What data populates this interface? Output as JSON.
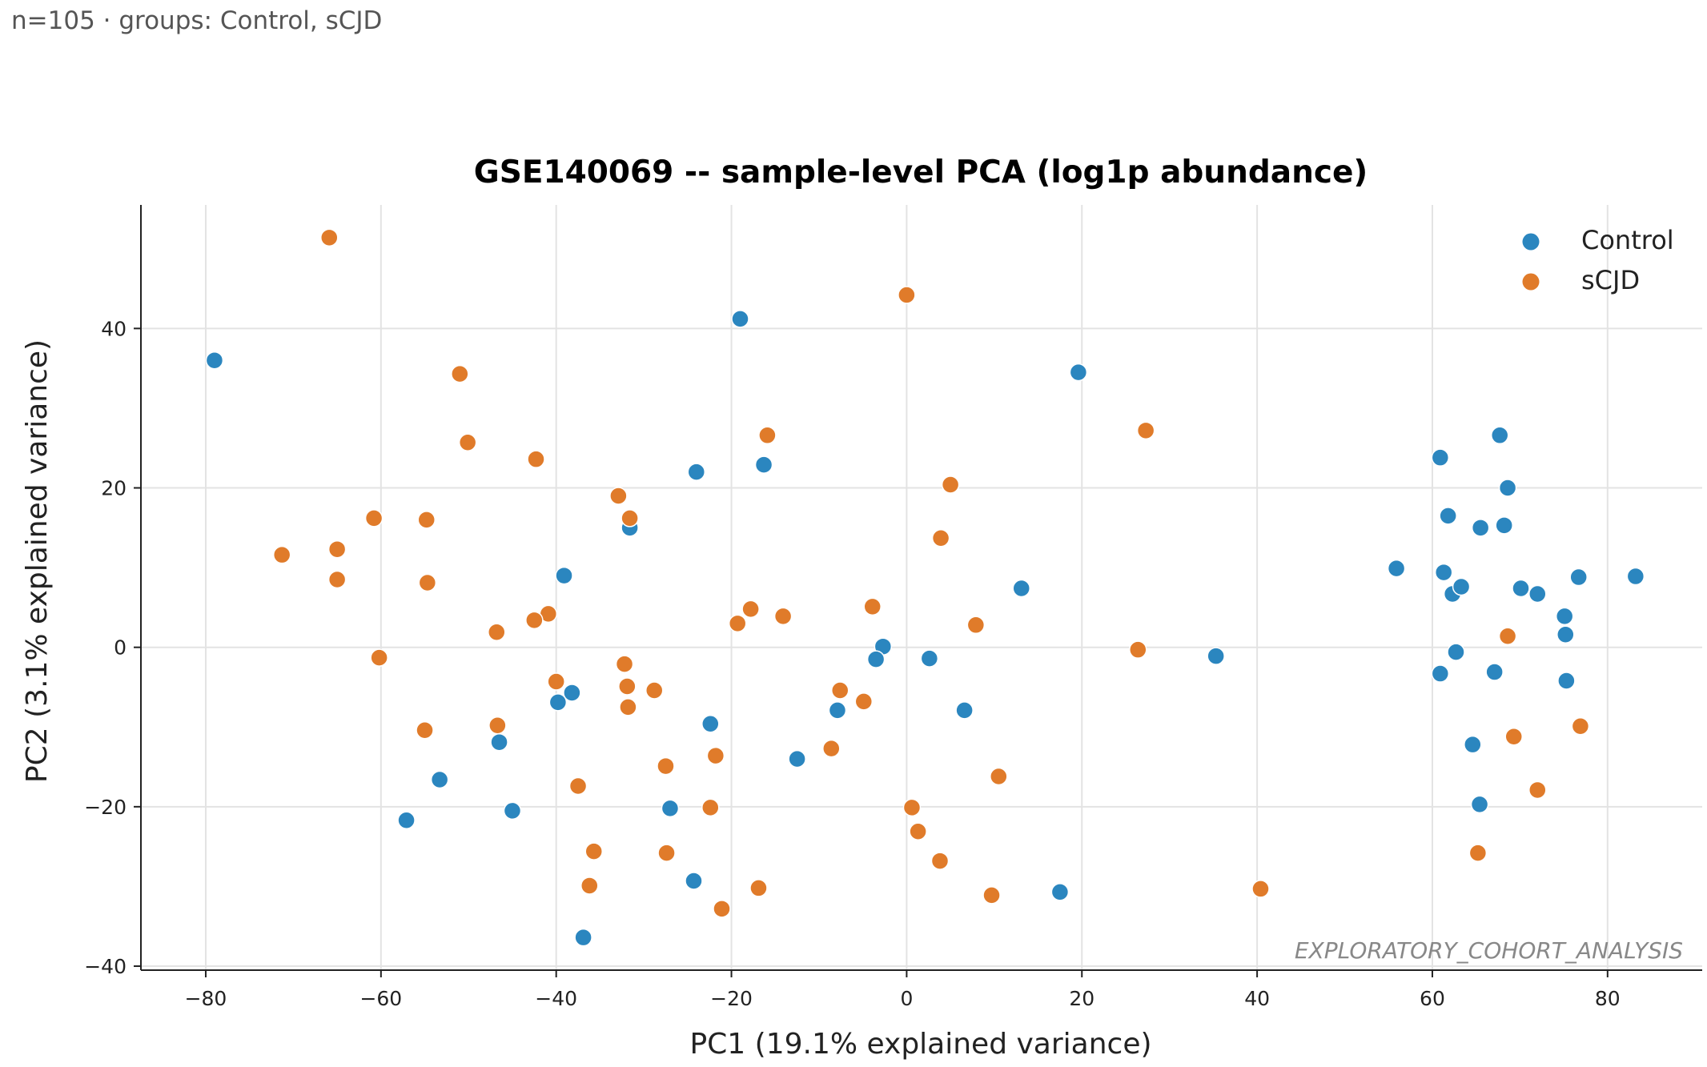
{
  "header": {
    "note": "n=105 · groups: Control, sCJD"
  },
  "watermark": "EXPLORATORY_COHORT_ANALYSIS",
  "chart_data": {
    "type": "scatter",
    "title": "GSE140069 -- sample-level PCA (log1p abundance)",
    "xlabel": "PC1 (19.1% explained variance)",
    "ylabel": "PC2 (3.1% explained variance)",
    "xlim": [
      -87.4,
      90.8
    ],
    "ylim": [
      -40.5,
      55.5
    ],
    "xticks": [
      -80,
      -60,
      -40,
      -20,
      0,
      20,
      40,
      60,
      80
    ],
    "yticks": [
      -40,
      -20,
      0,
      20,
      40
    ],
    "grid": true,
    "legend_position": "top-right",
    "series": [
      {
        "name": "Control",
        "color": "#2b86bf",
        "points": [
          [
            -79,
            36
          ],
          [
            -19,
            41.2
          ],
          [
            19.6,
            34.5
          ],
          [
            -24,
            22
          ],
          [
            -16.3,
            22.9
          ],
          [
            -31.6,
            15
          ],
          [
            -39.1,
            9
          ],
          [
            13.1,
            7.4
          ],
          [
            -2.7,
            0.1
          ],
          [
            -3.5,
            -1.5
          ],
          [
            2.6,
            -1.4
          ],
          [
            35.3,
            -1.1
          ],
          [
            -38.2,
            -5.7
          ],
          [
            -39.8,
            -6.9
          ],
          [
            -22.4,
            -9.6
          ],
          [
            -7.9,
            -7.9
          ],
          [
            6.6,
            -7.9
          ],
          [
            -46.5,
            -11.9
          ],
          [
            -12.5,
            -14
          ],
          [
            -53.3,
            -16.6
          ],
          [
            -57.1,
            -21.7
          ],
          [
            -45,
            -20.5
          ],
          [
            -27,
            -20.2
          ],
          [
            -24.3,
            -29.3
          ],
          [
            17.5,
            -30.7
          ],
          [
            -36.9,
            -36.4
          ],
          [
            67.7,
            26.6
          ],
          [
            60.9,
            23.8
          ],
          [
            68.6,
            20
          ],
          [
            61.8,
            16.5
          ],
          [
            65.5,
            15
          ],
          [
            68.2,
            15.3
          ],
          [
            55.9,
            9.9
          ],
          [
            61.3,
            9.4
          ],
          [
            62.3,
            6.7
          ],
          [
            63.3,
            7.6
          ],
          [
            70.1,
            7.4
          ],
          [
            72,
            6.7
          ],
          [
            76.7,
            8.8
          ],
          [
            83.2,
            8.9
          ],
          [
            75.1,
            3.9
          ],
          [
            75.2,
            1.6
          ],
          [
            62.7,
            -0.6
          ],
          [
            60.9,
            -3.3
          ],
          [
            67.1,
            -3.1
          ],
          [
            75.3,
            -4.2
          ],
          [
            64.6,
            -12.2
          ],
          [
            65.4,
            -19.7
          ]
        ]
      },
      {
        "name": "sCJD",
        "color": "#e07b2a",
        "points": [
          [
            -65.9,
            51.4
          ],
          [
            0,
            44.2
          ],
          [
            -51,
            34.3
          ],
          [
            -50.1,
            25.7
          ],
          [
            -15.9,
            26.6
          ],
          [
            27.3,
            27.2
          ],
          [
            -42.3,
            23.6
          ],
          [
            5,
            20.4
          ],
          [
            -32.9,
            19
          ],
          [
            -31.6,
            16.2
          ],
          [
            -60.8,
            16.2
          ],
          [
            -54.8,
            16
          ],
          [
            3.9,
            13.7
          ],
          [
            -71.3,
            11.6
          ],
          [
            -65,
            12.3
          ],
          [
            -65,
            8.5
          ],
          [
            -54.7,
            8.1
          ],
          [
            -40.9,
            4.2
          ],
          [
            -17.8,
            4.8
          ],
          [
            -3.9,
            5.1
          ],
          [
            -14.1,
            3.9
          ],
          [
            -42.5,
            3.4
          ],
          [
            -19.3,
            3
          ],
          [
            7.9,
            2.8
          ],
          [
            -46.8,
            1.9
          ],
          [
            26.4,
            -0.3
          ],
          [
            -60.2,
            -1.3
          ],
          [
            -32.2,
            -2.1
          ],
          [
            -31.9,
            -4.9
          ],
          [
            -40,
            -4.3
          ],
          [
            -28.8,
            -5.4
          ],
          [
            -7.6,
            -5.4
          ],
          [
            -31.8,
            -7.5
          ],
          [
            -4.9,
            -6.8
          ],
          [
            -46.7,
            -9.8
          ],
          [
            -55,
            -10.4
          ],
          [
            -8.6,
            -12.7
          ],
          [
            -21.8,
            -13.6
          ],
          [
            -27.5,
            -14.9
          ],
          [
            -37.5,
            -17.4
          ],
          [
            10.5,
            -16.2
          ],
          [
            -22.4,
            -20.1
          ],
          [
            0.6,
            -20.1
          ],
          [
            1.3,
            -23.1
          ],
          [
            -35.7,
            -25.6
          ],
          [
            -27.4,
            -25.8
          ],
          [
            3.8,
            -26.8
          ],
          [
            -36.2,
            -29.9
          ],
          [
            -16.9,
            -30.2
          ],
          [
            40.4,
            -30.3
          ],
          [
            9.7,
            -31.1
          ],
          [
            -21.1,
            -32.8
          ],
          [
            68.6,
            1.4
          ],
          [
            76.9,
            -9.9
          ],
          [
            69.3,
            -11.2
          ],
          [
            72,
            -17.9
          ],
          [
            65.2,
            -25.8
          ]
        ]
      }
    ]
  }
}
